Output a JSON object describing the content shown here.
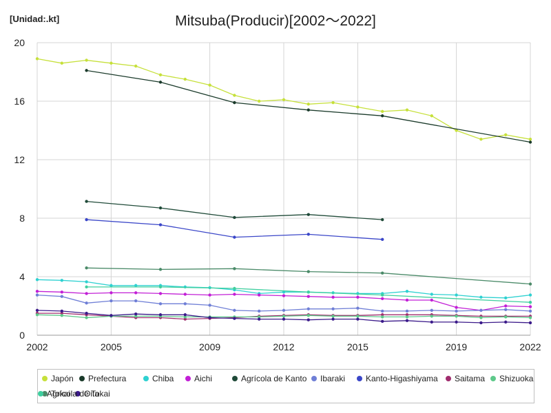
{
  "unit_label": "[Unidad:.kt]",
  "chart_data": {
    "type": "line",
    "title": "Mitsuba(Producir)[2002～2022]",
    "xlabel": "",
    "ylabel": "",
    "xlim": [
      2002,
      2022
    ],
    "ylim": [
      0,
      20
    ],
    "x_ticks": [
      2002,
      2005,
      2009,
      2012,
      2015,
      2019,
      2022
    ],
    "y_ticks": [
      0,
      4,
      8,
      12,
      16,
      20
    ],
    "grid": true,
    "legend_position": "bottom",
    "series": [
      {
        "name": "Japón",
        "color": "#c6e03a",
        "points": [
          [
            2002,
            18.9
          ],
          [
            2003,
            18.6
          ],
          [
            2004,
            18.8
          ],
          [
            2005,
            18.6
          ],
          [
            2006,
            18.4
          ],
          [
            2007,
            17.8
          ],
          [
            2008,
            17.5
          ],
          [
            2009,
            17.1
          ],
          [
            2010,
            16.4
          ],
          [
            2011,
            16.0
          ],
          [
            2012,
            16.1
          ],
          [
            2013,
            15.8
          ],
          [
            2014,
            15.9
          ],
          [
            2015,
            15.6
          ],
          [
            2016,
            15.3
          ],
          [
            2017,
            15.4
          ],
          [
            2018,
            15.0
          ],
          [
            2019,
            14.0
          ],
          [
            2020,
            13.4
          ],
          [
            2021,
            13.7
          ],
          [
            2022,
            13.4
          ]
        ]
      },
      {
        "name": "Prefectura",
        "color": "#1a3a2a",
        "points": [
          [
            2004,
            18.1
          ],
          [
            2007,
            17.3
          ],
          [
            2010,
            15.9
          ],
          [
            2013,
            15.4
          ],
          [
            2016,
            15.0
          ],
          [
            2022,
            13.2
          ]
        ]
      },
      {
        "name": "Chiba",
        "color": "#2ed1d1",
        "points": [
          [
            2002,
            3.8
          ],
          [
            2003,
            3.75
          ],
          [
            2004,
            3.65
          ],
          [
            2005,
            3.4
          ],
          [
            2006,
            3.4
          ],
          [
            2007,
            3.4
          ],
          [
            2008,
            3.3
          ],
          [
            2009,
            3.25
          ],
          [
            2010,
            3.1
          ],
          [
            2011,
            2.85
          ],
          [
            2012,
            2.95
          ],
          [
            2013,
            2.95
          ],
          [
            2014,
            2.9
          ],
          [
            2015,
            2.85
          ],
          [
            2016,
            2.85
          ],
          [
            2017,
            3.0
          ],
          [
            2018,
            2.8
          ],
          [
            2019,
            2.75
          ],
          [
            2020,
            2.6
          ],
          [
            2021,
            2.55
          ],
          [
            2022,
            2.75
          ]
        ]
      },
      {
        "name": "Aichi",
        "color": "#c21fd6",
        "points": [
          [
            2002,
            3.0
          ],
          [
            2003,
            2.95
          ],
          [
            2004,
            2.85
          ],
          [
            2005,
            2.9
          ],
          [
            2006,
            2.9
          ],
          [
            2007,
            2.85
          ],
          [
            2008,
            2.8
          ],
          [
            2009,
            2.75
          ],
          [
            2010,
            2.8
          ],
          [
            2011,
            2.75
          ],
          [
            2012,
            2.7
          ],
          [
            2013,
            2.65
          ],
          [
            2014,
            2.6
          ],
          [
            2015,
            2.6
          ],
          [
            2016,
            2.5
          ],
          [
            2017,
            2.4
          ],
          [
            2018,
            2.4
          ],
          [
            2019,
            1.9
          ],
          [
            2020,
            1.7
          ],
          [
            2021,
            2.0
          ],
          [
            2022,
            1.95
          ]
        ]
      },
      {
        "name": "Agrícola de Kanto",
        "color": "#1f4a38",
        "points": [
          [
            2004,
            9.15
          ],
          [
            2007,
            8.7
          ],
          [
            2010,
            8.05
          ],
          [
            2013,
            8.25
          ],
          [
            2016,
            7.9
          ]
        ]
      },
      {
        "name": "Ibaraki",
        "color": "#6f7fd6",
        "points": [
          [
            2002,
            2.75
          ],
          [
            2003,
            2.65
          ],
          [
            2004,
            2.2
          ],
          [
            2005,
            2.35
          ],
          [
            2006,
            2.35
          ],
          [
            2007,
            2.15
          ],
          [
            2008,
            2.15
          ],
          [
            2009,
            2.05
          ],
          [
            2010,
            1.7
          ],
          [
            2011,
            1.65
          ],
          [
            2012,
            1.7
          ],
          [
            2013,
            1.8
          ],
          [
            2014,
            1.8
          ],
          [
            2015,
            1.85
          ],
          [
            2016,
            1.65
          ],
          [
            2017,
            1.65
          ],
          [
            2018,
            1.7
          ],
          [
            2019,
            1.65
          ],
          [
            2020,
            1.7
          ],
          [
            2021,
            1.75
          ],
          [
            2022,
            1.65
          ]
        ]
      },
      {
        "name": "Kanto-Higashiyama",
        "color": "#3a46c8",
        "points": [
          [
            2004,
            7.9
          ],
          [
            2007,
            7.55
          ],
          [
            2010,
            6.7
          ],
          [
            2013,
            6.9
          ],
          [
            2016,
            6.55
          ]
        ]
      },
      {
        "name": "Saitama",
        "color": "#a02d6e",
        "points": [
          [
            2002,
            1.5
          ],
          [
            2003,
            1.5
          ],
          [
            2004,
            1.4
          ],
          [
            2005,
            1.3
          ],
          [
            2006,
            1.2
          ],
          [
            2007,
            1.2
          ],
          [
            2008,
            1.1
          ],
          [
            2009,
            1.15
          ],
          [
            2010,
            1.2
          ],
          [
            2011,
            1.3
          ],
          [
            2012,
            1.35
          ],
          [
            2013,
            1.4
          ],
          [
            2014,
            1.35
          ],
          [
            2015,
            1.35
          ],
          [
            2016,
            1.4
          ],
          [
            2017,
            1.4
          ],
          [
            2018,
            1.4
          ],
          [
            2019,
            1.35
          ],
          [
            2020,
            1.3
          ],
          [
            2021,
            1.3
          ],
          [
            2022,
            1.3
          ]
        ]
      },
      {
        "name": "Shizuoka",
        "color": "#5ec98a",
        "points": [
          [
            2002,
            1.4
          ],
          [
            2003,
            1.35
          ],
          [
            2004,
            1.2
          ],
          [
            2005,
            1.3
          ],
          [
            2006,
            1.3
          ],
          [
            2007,
            1.3
          ],
          [
            2008,
            1.25
          ],
          [
            2009,
            1.25
          ],
          [
            2010,
            1.25
          ],
          [
            2011,
            1.25
          ],
          [
            2012,
            1.3
          ],
          [
            2013,
            1.35
          ],
          [
            2014,
            1.3
          ],
          [
            2015,
            1.3
          ],
          [
            2016,
            1.25
          ],
          [
            2017,
            1.25
          ],
          [
            2018,
            1.3
          ],
          [
            2019,
            1.3
          ],
          [
            2020,
            1.2
          ],
          [
            2021,
            1.25
          ],
          [
            2022,
            1.2
          ]
        ]
      },
      {
        "name": "Tokai",
        "color": "#4a8a68",
        "points": [
          [
            2004,
            4.6
          ],
          [
            2007,
            4.5
          ],
          [
            2010,
            4.55
          ],
          [
            2013,
            4.35
          ],
          [
            2016,
            4.25
          ],
          [
            2022,
            3.5
          ]
        ]
      },
      {
        "name": "Oita",
        "color": "#3b1a8a",
        "points": [
          [
            2002,
            1.7
          ],
          [
            2003,
            1.65
          ],
          [
            2004,
            1.5
          ],
          [
            2005,
            1.35
          ],
          [
            2006,
            1.45
          ],
          [
            2007,
            1.4
          ],
          [
            2008,
            1.4
          ],
          [
            2009,
            1.2
          ],
          [
            2010,
            1.15
          ],
          [
            2011,
            1.1
          ],
          [
            2012,
            1.1
          ],
          [
            2013,
            1.05
          ],
          [
            2014,
            1.1
          ],
          [
            2015,
            1.1
          ],
          [
            2016,
            0.95
          ],
          [
            2017,
            1.0
          ],
          [
            2018,
            0.9
          ],
          [
            2019,
            0.9
          ],
          [
            2020,
            0.85
          ],
          [
            2021,
            0.9
          ],
          [
            2022,
            0.85
          ]
        ]
      },
      {
        "name": "Agrícola de Tokai",
        "color": "#3fcf9f",
        "points": [
          [
            2004,
            3.3
          ],
          [
            2007,
            3.3
          ],
          [
            2010,
            3.2
          ],
          [
            2013,
            2.95
          ],
          [
            2016,
            2.75
          ],
          [
            2022,
            2.25
          ]
        ]
      }
    ]
  }
}
